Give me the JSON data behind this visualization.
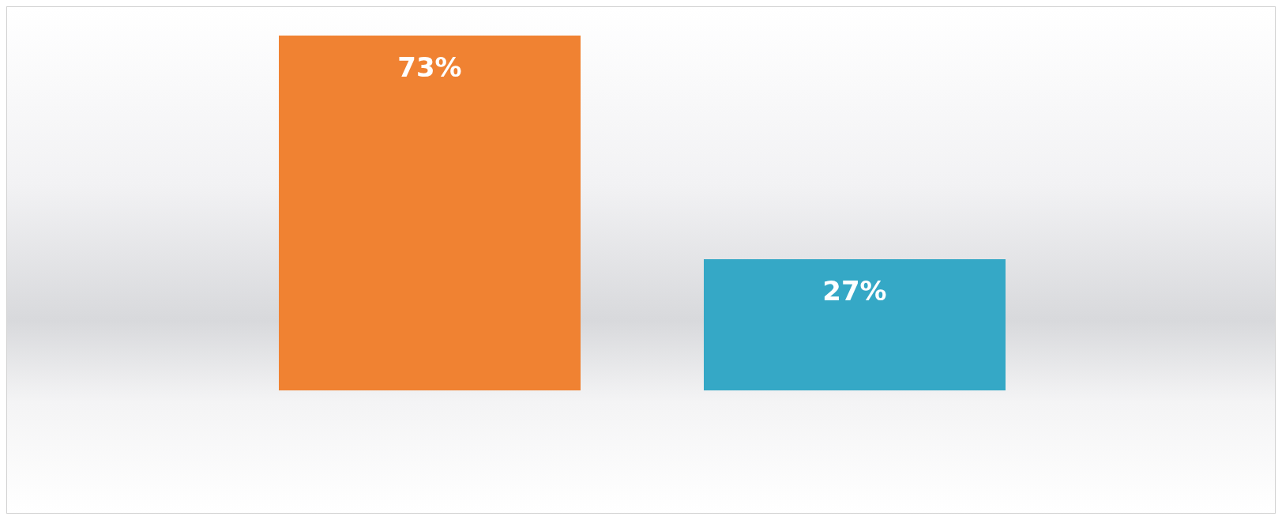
{
  "chart_data": {
    "type": "bar",
    "categories": [
      null,
      null
    ],
    "values": [
      73,
      27
    ],
    "colors": [
      "#f08232",
      "#35a8c6"
    ],
    "value_labels": [
      "73%",
      "27%"
    ],
    "grid": false,
    "legend": false
  }
}
